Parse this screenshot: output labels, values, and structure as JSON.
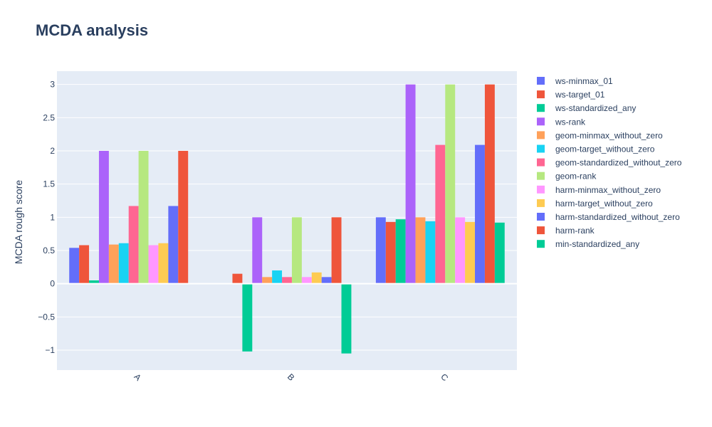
{
  "chart_data": {
    "type": "bar",
    "title": "MCDA analysis",
    "xlabel": "",
    "ylabel": "MCDA rough score",
    "categories": [
      "A",
      "B",
      "C"
    ],
    "ylim": [
      -1.3,
      3.2
    ],
    "yticks": [
      -1,
      -0.5,
      0,
      0.5,
      1,
      1.5,
      2,
      2.5,
      3
    ],
    "ytick_labels": [
      "−1",
      "−0.5",
      "0",
      "0.5",
      "1",
      "1.5",
      "2",
      "2.5",
      "3"
    ],
    "grid": true,
    "legend_position": "right",
    "plot_background": "#E5ECF6",
    "series": [
      {
        "name": "ws-minmax_01",
        "color": "#636EFA",
        "values": [
          0.54,
          0.0,
          1.0
        ]
      },
      {
        "name": "ws-target_01",
        "color": "#EF553B",
        "values": [
          0.58,
          0.15,
          0.93
        ]
      },
      {
        "name": "ws-standardized_any",
        "color": "#00CC96",
        "values": [
          0.05,
          -1.02,
          0.97
        ]
      },
      {
        "name": "ws-rank",
        "color": "#AB63FA",
        "values": [
          2.0,
          1.0,
          3.0
        ]
      },
      {
        "name": "geom-minmax_without_zero",
        "color": "#FFA15A",
        "values": [
          0.59,
          0.1,
          1.0
        ]
      },
      {
        "name": "geom-target_without_zero",
        "color": "#19D3F3",
        "values": [
          0.61,
          0.2,
          0.94
        ]
      },
      {
        "name": "geom-standardized_without_zero",
        "color": "#FF6692",
        "values": [
          1.17,
          0.1,
          2.09
        ]
      },
      {
        "name": "geom-rank",
        "color": "#B6E880",
        "values": [
          2.0,
          1.0,
          3.0
        ]
      },
      {
        "name": "harm-minmax_without_zero",
        "color": "#FF97FF",
        "values": [
          0.58,
          0.1,
          1.0
        ]
      },
      {
        "name": "harm-target_without_zero",
        "color": "#FECB52",
        "values": [
          0.61,
          0.17,
          0.93
        ]
      },
      {
        "name": "harm-standardized_without_zero",
        "color": "#636EFA",
        "values": [
          1.17,
          0.1,
          2.09
        ]
      },
      {
        "name": "harm-rank",
        "color": "#EF553B",
        "values": [
          2.0,
          1.0,
          3.0
        ]
      },
      {
        "name": "min-standardized_any",
        "color": "#00CC96",
        "values": [
          0.0,
          -1.05,
          0.92
        ]
      }
    ]
  }
}
